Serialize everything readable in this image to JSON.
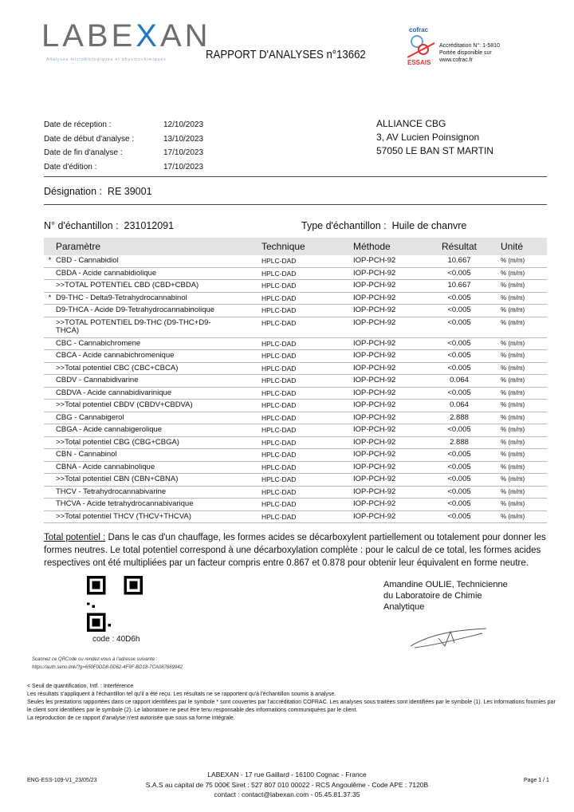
{
  "header": {
    "logo": "LABEXAN",
    "logo_tagline": "Analyses microbiologiques et physicochimiques",
    "title": "RAPPORT D'ANALYSES n°13662",
    "cofrac_logo": "cofrac ESSAIS",
    "accreditation": [
      "Accréditation N°: 1-5810",
      "Portée disponible sur",
      "www.cofrac.fr"
    ]
  },
  "dates": [
    {
      "label": "Date de réception :",
      "value": "12/10/2023"
    },
    {
      "label": "Date de début d'analyse :",
      "value": "13/10/2023"
    },
    {
      "label": "Date de fin d'analyse :",
      "value": "17/10/2023"
    },
    {
      "label": "Date d'édition :",
      "value": "17/10/2023"
    }
  ],
  "client": {
    "name": "ALLIANCE CBG",
    "address": "3, AV Lucien Poinsignon",
    "city": "57050 LE BAN ST MARTIN"
  },
  "designation": {
    "label": "Désignation :",
    "value": "RE 39001"
  },
  "sample": {
    "label": "N° d'échantillon :",
    "value": "231012091",
    "type_label": "Type d'échantillon :",
    "type_value": "Huile de chanvre"
  },
  "table": {
    "headers": [
      "Paramètre",
      "Technique",
      "Méthode",
      "Résultat",
      "Unité"
    ],
    "rows": [
      {
        "star": "*",
        "param": "CBD - Cannabidiol",
        "tech": "HPLC-DAD",
        "method": "IOP-PCH-92",
        "result": "10.667",
        "unit": "% (m/m)"
      },
      {
        "star": "",
        "param": "CBDA - Acide cannabidiolique",
        "tech": "HPLC-DAD",
        "method": "IOP-PCH-92",
        "result": "<0.005",
        "unit": "% (m/m)"
      },
      {
        "star": "",
        "param": ">>TOTAL POTENTIEL CBD (CBD+CBDA)",
        "tech": "HPLC-DAD",
        "method": "IOP-PCH-92",
        "result": "10.667",
        "unit": "% (m/m)"
      },
      {
        "star": "*",
        "param": "D9-THC - Delta9-Tetrahydrocannabinol",
        "tech": "HPLC-DAD",
        "method": "IOP-PCH-92",
        "result": "<0.005",
        "unit": "% (m/m)"
      },
      {
        "star": "",
        "param": "D9-THCA - Acide D9-Tetrahydrocannabinolique",
        "tech": "HPLC-DAD",
        "method": "IOP-PCH-92",
        "result": "<0.005",
        "unit": "% (m/m)"
      },
      {
        "star": "",
        "param": ">>TOTAL POTENTIEL D9-THC (D9-THC+D9-THCA)",
        "tech": "HPLC-DAD",
        "method": "IOP-PCH-92",
        "result": "<0.005",
        "unit": "% (m/m)"
      },
      {
        "star": "",
        "param": "CBC - Cannabichromene",
        "tech": "HPLC-DAD",
        "method": "IOP-PCH-92",
        "result": "<0.005",
        "unit": "% (m/m)"
      },
      {
        "star": "",
        "param": "CBCA - Acide cannabichromenique",
        "tech": "HPLC-DAD",
        "method": "IOP-PCH-92",
        "result": "<0.005",
        "unit": "% (m/m)"
      },
      {
        "star": "",
        "param": ">>Total potentiel CBC (CBC+CBCA)",
        "tech": "HPLC-DAD",
        "method": "IOP-PCH-92",
        "result": "<0.005",
        "unit": "% (m/m)"
      },
      {
        "star": "",
        "param": "CBDV - Cannabidivarine",
        "tech": "HPLC-DAD",
        "method": "IOP-PCH-92",
        "result": "0.064",
        "unit": "% (m/m)"
      },
      {
        "star": "",
        "param": "CBDVA - Acide cannabidivarinique",
        "tech": "HPLC-DAD",
        "method": "IOP-PCH-92",
        "result": "<0.005",
        "unit": "% (m/m)"
      },
      {
        "star": "",
        "param": ">>Total potentiel CBDV (CBDV+CBDVA)",
        "tech": "HPLC-DAD",
        "method": "IOP-PCH-92",
        "result": "0.064",
        "unit": "% (m/m)"
      },
      {
        "star": "",
        "param": "CBG - Cannabigerol",
        "tech": "HPLC-DAD",
        "method": "IOP-PCH-92",
        "result": "2.888",
        "unit": "% (m/m)"
      },
      {
        "star": "",
        "param": "CBGA - Acide cannabigerolique",
        "tech": "HPLC-DAD",
        "method": "IOP-PCH-92",
        "result": "<0.005",
        "unit": "% (m/m)"
      },
      {
        "star": "",
        "param": ">>Total potentiel CBG (CBG+CBGA)",
        "tech": "HPLC-DAD",
        "method": "IOP-PCH-92",
        "result": "2.888",
        "unit": "% (m/m)"
      },
      {
        "star": "",
        "param": "CBN - Cannabinol",
        "tech": "HPLC-DAD",
        "method": "IOP-PCH-92",
        "result": "<0.005",
        "unit": "% (m/m)"
      },
      {
        "star": "",
        "param": "CBNA - Acide cannabinolique",
        "tech": "HPLC-DAD",
        "method": "IOP-PCH-92",
        "result": "<0.005",
        "unit": "% (m/m)"
      },
      {
        "star": "",
        "param": ">>Total potentiel CBN (CBN+CBNA)",
        "tech": "HPLC-DAD",
        "method": "IOP-PCH-92",
        "result": "<0.005",
        "unit": "% (m/m)"
      },
      {
        "star": "",
        "param": "THCV - Tetrahydrocannabivarine",
        "tech": "HPLC-DAD",
        "method": "IOP-PCH-92",
        "result": "<0.005",
        "unit": "% (m/m)"
      },
      {
        "star": "",
        "param": "THCVA - Acide tetrahydrocannabivarique",
        "tech": "HPLC-DAD",
        "method": "IOP-PCH-92",
        "result": "<0.005",
        "unit": "% (m/m)"
      },
      {
        "star": "",
        "param": ">>Total potentiel THCV (THCV+THCVA)",
        "tech": "HPLC-DAD",
        "method": "IOP-PCH-92",
        "result": "<0.005",
        "unit": "% (m/m)"
      }
    ]
  },
  "note": {
    "label": "Total potentiel :",
    "text": " Dans le cas d'un chauffage, les formes acides se décarboxylent partiellement ou totalement pour donner les formes neutres. Le total potentiel correspond à une décarboxylation complète : pour le calcul de ce total, les formes acides respectives ont été multipliées par un facteur compris entre 0.867 et 0.878 pour obtenir leur équivalent en forme neutre."
  },
  "qr": {
    "code": "code :   40D6h",
    "scan_text": "Scannez ce QRCode ou rendez-vous à l'adresse suivante :",
    "url": "https://auth.seno.link/?g=650F0DD8-0D62-4F9F-BD18-7CA087669942"
  },
  "signature": {
    "lines": [
      "Amandine OULIE, Technicienne",
      "du Laboratoire de Chimie",
      "Analytique"
    ]
  },
  "legal": [
    "< Seuil de quantification, Intf. : Interférence",
    "Les résultats s'appliquent à l'échantillon tel qu'il a été reçu. Les résultats ne se rapportent qu'à l'échantillon soumis à analyse.",
    "Seules les prestations rapportées dans ce rapport identifiées par le symbole * sont couvertes par l'accréditation COFRAC. Les analyses sous traitées sont identifiées par le symbole (1). Les informations fournies par le client sont identifiées par le symbole (2). Le laboratoire ne peut être tenu responsable des informations communiquées par le client.",
    "La reproduction de ce rapport d'analyse n'est autorisée que sous sa forme intégrale."
  ],
  "footer": {
    "ref": "ENG-ESS-109-V1_23/05/23",
    "lines": [
      "LABEXAN - 17 rue Gaillard - 16100 Cognac - France",
      "S.A.S au capital de 75 000€ Siret : 527 807 010 00022 - RCS Angoulême - Code APE : 7120B",
      "contact : contact@labexan.com - 05.45.81.37.35"
    ],
    "page": "Page 1 / 1"
  }
}
